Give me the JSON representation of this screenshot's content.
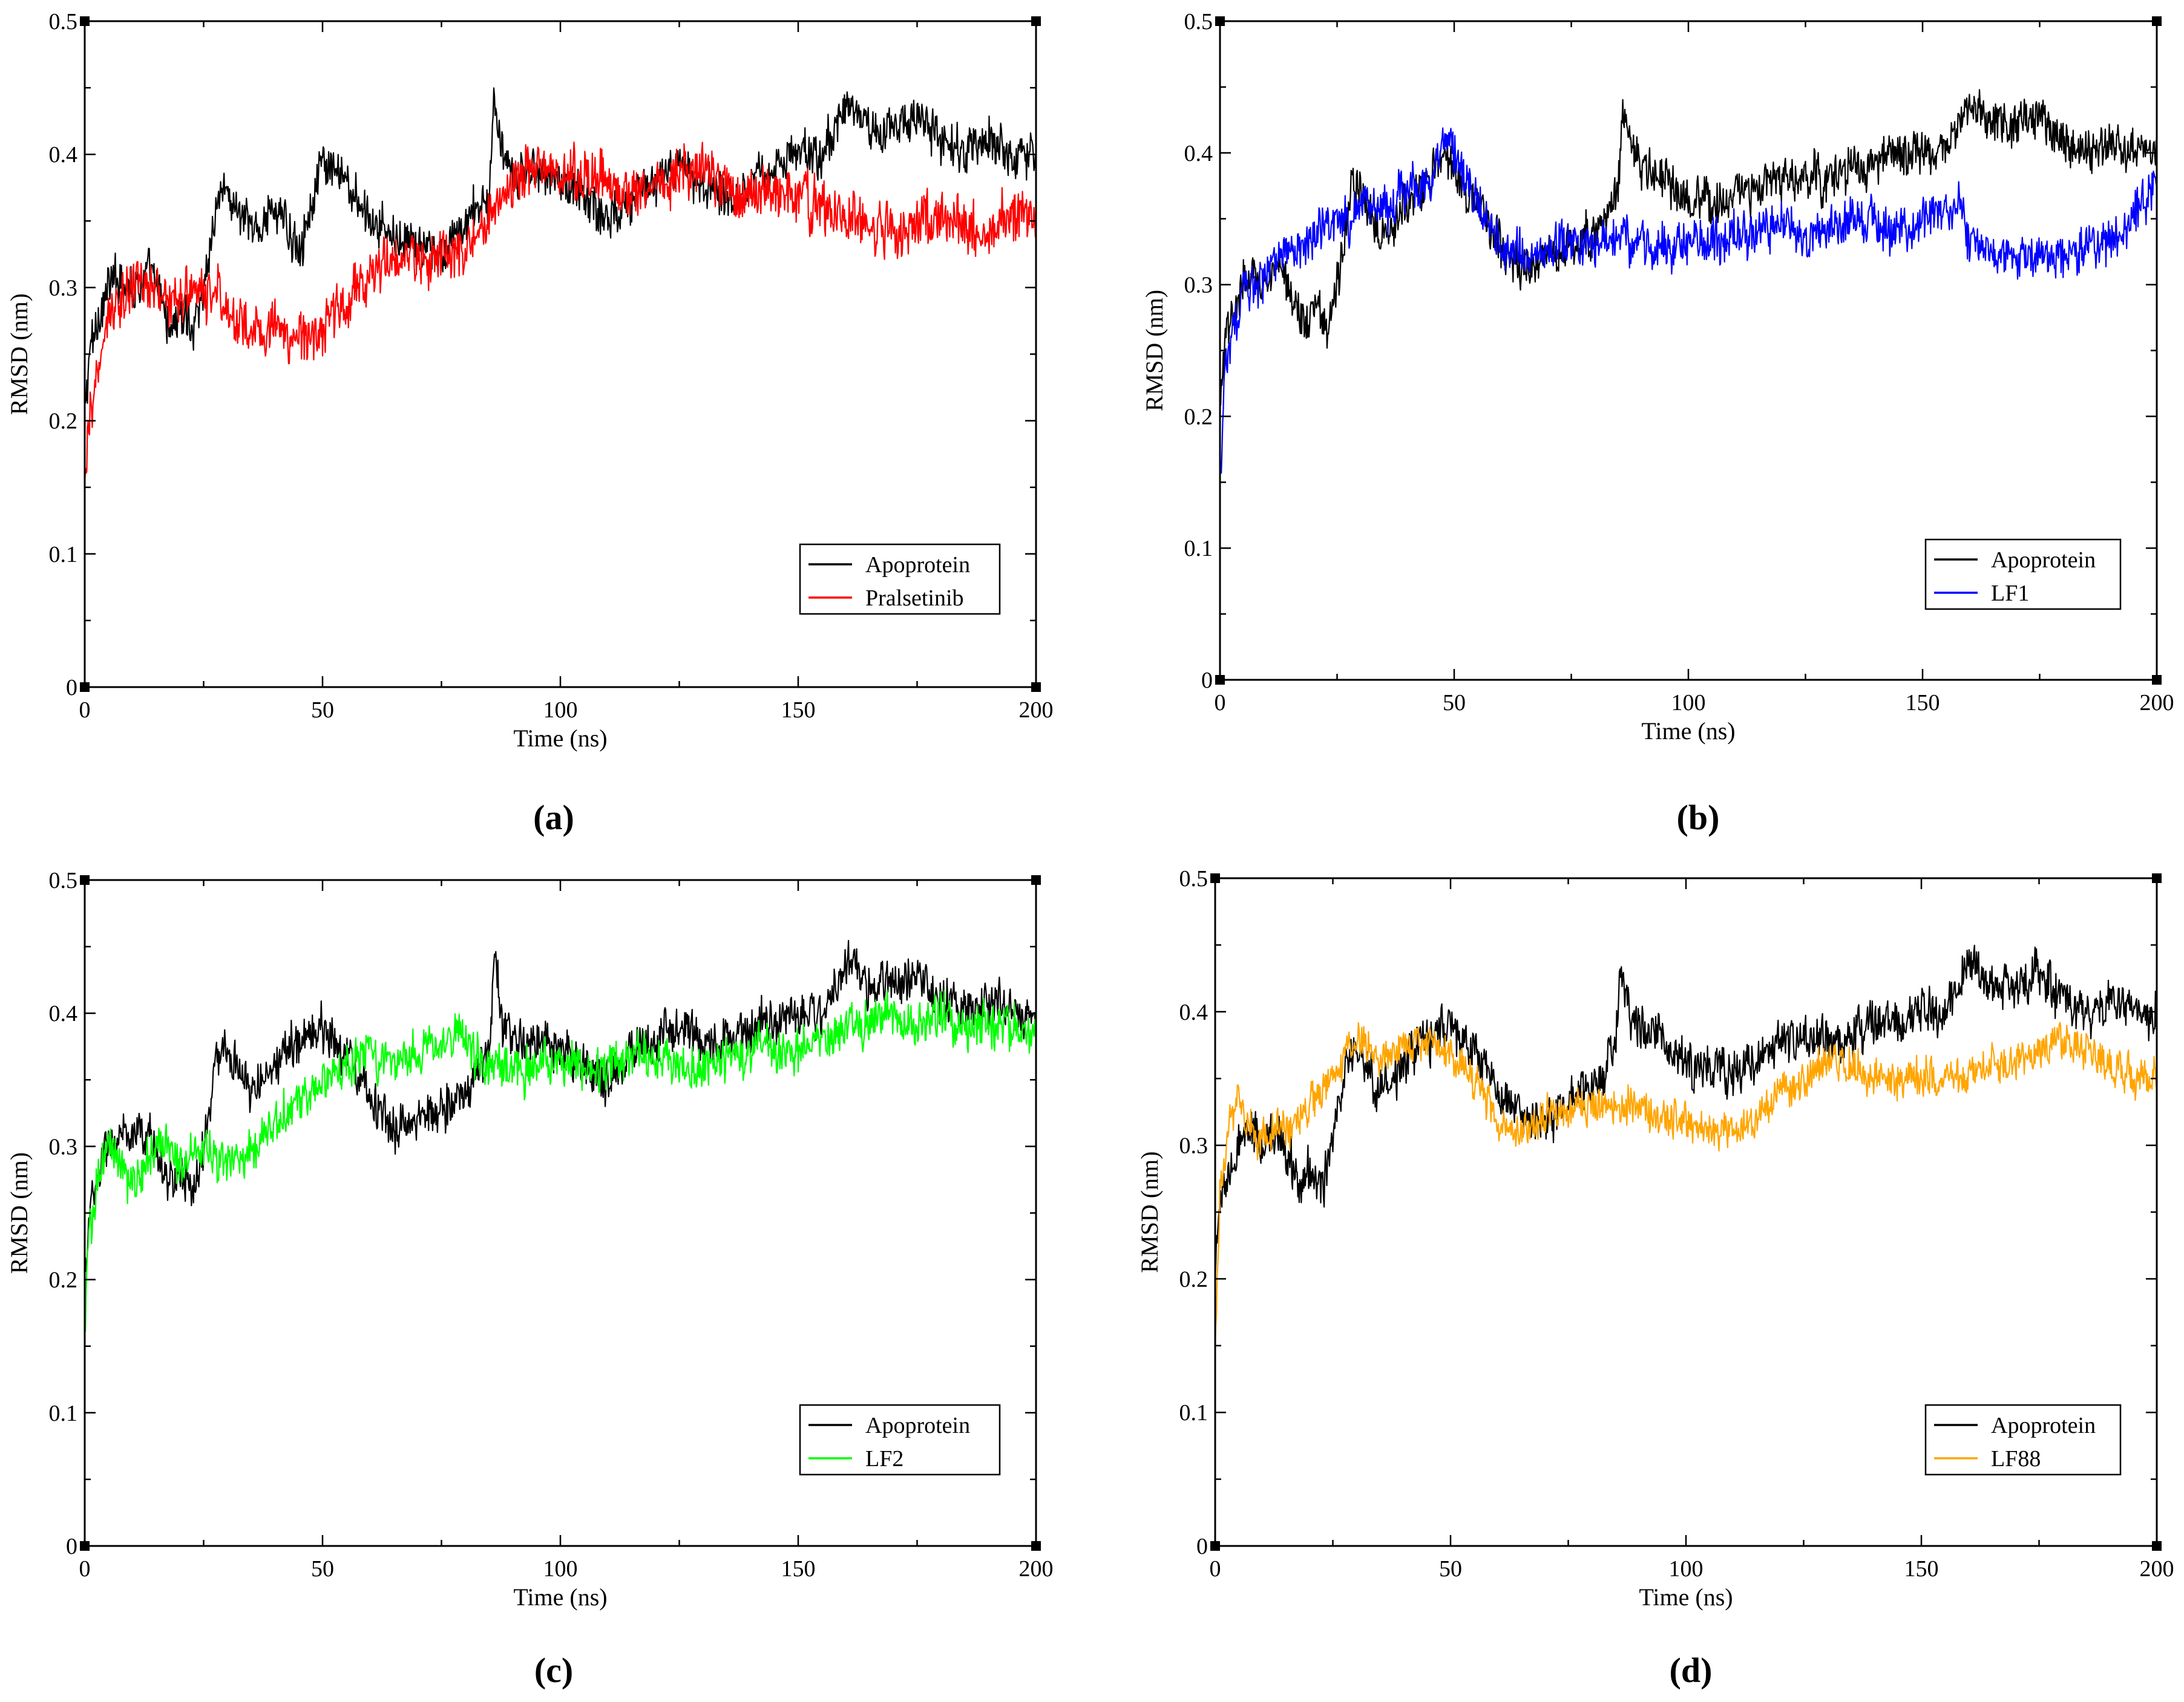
{
  "figure": {
    "panel_labels": [
      "(a)",
      "(b)",
      "(c)",
      "(d)"
    ]
  },
  "chart_data": [
    {
      "panel": "(a)",
      "type": "line",
      "xlabel": "Time (ns)",
      "ylabel": "RMSD (nm)",
      "xlim": [
        0,
        200
      ],
      "ylim": [
        0,
        0.5
      ],
      "x_ticks": [
        0,
        50,
        100,
        150,
        200
      ],
      "x_tick_labels": [
        "0",
        "50",
        "100",
        "150",
        "200"
      ],
      "y_ticks": [
        0,
        0.1,
        0.2,
        0.3,
        0.4,
        0.5
      ],
      "y_tick_labels": [
        "0",
        "0.1",
        "0.2",
        "0.3",
        "0.4",
        "0.5"
      ],
      "legend_position": "bottom-right",
      "x": [
        0,
        1,
        3,
        5,
        8,
        10,
        13,
        15,
        18,
        20,
        23,
        25,
        28,
        30,
        35,
        40,
        45,
        50,
        55,
        60,
        65,
        70,
        75,
        80,
        85,
        86,
        88,
        90,
        95,
        100,
        105,
        110,
        115,
        120,
        125,
        130,
        135,
        140,
        145,
        150,
        155,
        158,
        160,
        165,
        170,
        175,
        180,
        185,
        190,
        195,
        200
      ],
      "series": [
        {
          "name": "Apoprotein",
          "color": "#000000",
          "values": [
            0.2,
            0.25,
            0.28,
            0.3,
            0.31,
            0.3,
            0.31,
            0.3,
            0.27,
            0.28,
            0.27,
            0.3,
            0.37,
            0.37,
            0.34,
            0.36,
            0.33,
            0.39,
            0.38,
            0.35,
            0.34,
            0.33,
            0.32,
            0.35,
            0.37,
            0.44,
            0.39,
            0.38,
            0.39,
            0.38,
            0.37,
            0.35,
            0.37,
            0.38,
            0.39,
            0.38,
            0.37,
            0.38,
            0.39,
            0.4,
            0.4,
            0.42,
            0.44,
            0.42,
            0.42,
            0.43,
            0.41,
            0.4,
            0.41,
            0.4,
            0.4
          ],
          "noise": 0.022
        },
        {
          "name": "Pralsetinib",
          "color": "#ff0000",
          "values": [
            0.14,
            0.2,
            0.24,
            0.28,
            0.29,
            0.3,
            0.3,
            0.3,
            0.29,
            0.29,
            0.3,
            0.29,
            0.3,
            0.28,
            0.27,
            0.27,
            0.26,
            0.27,
            0.29,
            0.31,
            0.32,
            0.32,
            0.32,
            0.33,
            0.35,
            0.36,
            0.37,
            0.38,
            0.39,
            0.39,
            0.38,
            0.38,
            0.37,
            0.38,
            0.39,
            0.39,
            0.38,
            0.37,
            0.37,
            0.37,
            0.36,
            0.35,
            0.35,
            0.35,
            0.34,
            0.35,
            0.35,
            0.35,
            0.34,
            0.35,
            0.36
          ],
          "noise": 0.026
        }
      ]
    },
    {
      "panel": "(b)",
      "type": "line",
      "xlabel": "Time (ns)",
      "ylabel": "RMSD (nm)",
      "xlim": [
        0,
        200
      ],
      "ylim": [
        0,
        0.5
      ],
      "x_ticks": [
        0,
        50,
        100,
        150,
        200
      ],
      "x_tick_labels": [
        "0",
        "50",
        "100",
        "150",
        "200"
      ],
      "y_ticks": [
        0,
        0.1,
        0.2,
        0.3,
        0.4,
        0.5
      ],
      "y_tick_labels": [
        "0",
        "0.1",
        "0.2",
        "0.3",
        "0.4",
        "0.5"
      ],
      "legend_position": "bottom-right",
      "x": [
        0,
        1,
        3,
        5,
        8,
        10,
        13,
        15,
        18,
        20,
        23,
        25,
        28,
        30,
        35,
        40,
        45,
        48,
        50,
        55,
        60,
        65,
        70,
        75,
        80,
        85,
        86,
        88,
        90,
        95,
        100,
        105,
        110,
        115,
        120,
        125,
        130,
        135,
        140,
        145,
        150,
        155,
        158,
        160,
        165,
        170,
        175,
        180,
        185,
        190,
        195,
        200
      ],
      "series": [
        {
          "name": "Apoprotein",
          "color": "#000000",
          "values": [
            0.2,
            0.25,
            0.28,
            0.3,
            0.31,
            0.3,
            0.31,
            0.3,
            0.27,
            0.28,
            0.27,
            0.3,
            0.37,
            0.37,
            0.34,
            0.36,
            0.38,
            0.4,
            0.39,
            0.36,
            0.33,
            0.31,
            0.32,
            0.33,
            0.34,
            0.37,
            0.44,
            0.4,
            0.39,
            0.38,
            0.36,
            0.36,
            0.37,
            0.37,
            0.38,
            0.38,
            0.38,
            0.39,
            0.39,
            0.4,
            0.4,
            0.4,
            0.42,
            0.44,
            0.42,
            0.42,
            0.43,
            0.41,
            0.4,
            0.41,
            0.4,
            0.4
          ],
          "noise": 0.022
        },
        {
          "name": "LF1",
          "color": "#0000ff",
          "values": [
            0.15,
            0.24,
            0.27,
            0.29,
            0.3,
            0.31,
            0.32,
            0.33,
            0.33,
            0.34,
            0.34,
            0.35,
            0.35,
            0.36,
            0.36,
            0.37,
            0.38,
            0.41,
            0.4,
            0.36,
            0.33,
            0.32,
            0.33,
            0.33,
            0.33,
            0.34,
            0.34,
            0.33,
            0.33,
            0.33,
            0.33,
            0.33,
            0.34,
            0.34,
            0.35,
            0.34,
            0.34,
            0.35,
            0.35,
            0.34,
            0.35,
            0.36,
            0.36,
            0.33,
            0.32,
            0.32,
            0.32,
            0.32,
            0.33,
            0.33,
            0.35,
            0.38
          ],
          "noise": 0.022
        }
      ]
    },
    {
      "panel": "(c)",
      "type": "line",
      "xlabel": "Time (ns)",
      "ylabel": "RMSD (nm)",
      "xlim": [
        0,
        200
      ],
      "ylim": [
        0,
        0.5
      ],
      "x_ticks": [
        0,
        50,
        100,
        150,
        200
      ],
      "x_tick_labels": [
        "0",
        "50",
        "100",
        "150",
        "200"
      ],
      "y_ticks": [
        0,
        0.1,
        0.2,
        0.3,
        0.4,
        0.5
      ],
      "y_tick_labels": [
        "0",
        "0.1",
        "0.2",
        "0.3",
        "0.4",
        "0.5"
      ],
      "legend_position": "bottom-right",
      "x": [
        0,
        1,
        3,
        5,
        8,
        10,
        13,
        15,
        18,
        20,
        23,
        25,
        28,
        30,
        35,
        40,
        45,
        50,
        55,
        60,
        65,
        70,
        75,
        80,
        85,
        86,
        88,
        90,
        95,
        100,
        105,
        110,
        115,
        120,
        125,
        130,
        135,
        140,
        145,
        150,
        155,
        158,
        160,
        165,
        170,
        175,
        180,
        185,
        190,
        195,
        200
      ],
      "series": [
        {
          "name": "Apoprotein",
          "color": "#000000",
          "values": [
            0.2,
            0.25,
            0.28,
            0.3,
            0.31,
            0.3,
            0.31,
            0.3,
            0.27,
            0.28,
            0.27,
            0.3,
            0.37,
            0.37,
            0.34,
            0.36,
            0.38,
            0.39,
            0.37,
            0.34,
            0.31,
            0.32,
            0.33,
            0.34,
            0.37,
            0.44,
            0.39,
            0.38,
            0.38,
            0.37,
            0.36,
            0.35,
            0.37,
            0.38,
            0.39,
            0.38,
            0.38,
            0.39,
            0.39,
            0.4,
            0.4,
            0.42,
            0.44,
            0.42,
            0.42,
            0.43,
            0.41,
            0.4,
            0.41,
            0.4,
            0.4
          ],
          "noise": 0.022
        },
        {
          "name": "LF2",
          "color": "#00ff00",
          "values": [
            0.16,
            0.24,
            0.28,
            0.3,
            0.28,
            0.27,
            0.29,
            0.3,
            0.3,
            0.29,
            0.29,
            0.3,
            0.29,
            0.29,
            0.3,
            0.32,
            0.33,
            0.35,
            0.36,
            0.37,
            0.36,
            0.37,
            0.38,
            0.38,
            0.35,
            0.36,
            0.36,
            0.36,
            0.36,
            0.36,
            0.36,
            0.36,
            0.37,
            0.37,
            0.36,
            0.36,
            0.37,
            0.37,
            0.37,
            0.37,
            0.38,
            0.38,
            0.39,
            0.39,
            0.4,
            0.39,
            0.4,
            0.39,
            0.39,
            0.39,
            0.39
          ],
          "noise": 0.022
        }
      ]
    },
    {
      "panel": "(d)",
      "type": "line",
      "xlabel": "Time (ns)",
      "ylabel": "RMSD (nm)",
      "xlim": [
        0,
        200
      ],
      "ylim": [
        0,
        0.5
      ],
      "x_ticks": [
        0,
        50,
        100,
        150,
        200
      ],
      "x_tick_labels": [
        "0",
        "50",
        "100",
        "150",
        "200"
      ],
      "y_ticks": [
        0,
        0.1,
        0.2,
        0.3,
        0.4,
        0.5
      ],
      "y_tick_labels": [
        "0",
        "0.1",
        "0.2",
        "0.3",
        "0.4",
        "0.5"
      ],
      "legend_position": "bottom-right",
      "x": [
        0,
        1,
        3,
        5,
        8,
        10,
        13,
        15,
        18,
        20,
        23,
        25,
        28,
        30,
        35,
        40,
        45,
        50,
        55,
        60,
        65,
        70,
        75,
        80,
        85,
        86,
        88,
        90,
        95,
        100,
        105,
        110,
        115,
        120,
        125,
        130,
        135,
        140,
        145,
        150,
        155,
        158,
        160,
        165,
        170,
        175,
        180,
        185,
        190,
        195,
        200
      ],
      "series": [
        {
          "name": "Apoprotein",
          "color": "#000000",
          "values": [
            0.2,
            0.25,
            0.28,
            0.3,
            0.31,
            0.3,
            0.31,
            0.3,
            0.27,
            0.28,
            0.27,
            0.3,
            0.37,
            0.37,
            0.34,
            0.36,
            0.38,
            0.39,
            0.37,
            0.34,
            0.32,
            0.32,
            0.33,
            0.34,
            0.37,
            0.44,
            0.4,
            0.39,
            0.38,
            0.36,
            0.36,
            0.35,
            0.37,
            0.38,
            0.38,
            0.38,
            0.38,
            0.39,
            0.39,
            0.4,
            0.4,
            0.42,
            0.44,
            0.42,
            0.42,
            0.43,
            0.41,
            0.4,
            0.41,
            0.4,
            0.4
          ],
          "noise": 0.022
        },
        {
          "name": "LF88",
          "color": "#ffa500",
          "values": [
            0.15,
            0.27,
            0.32,
            0.33,
            0.31,
            0.3,
            0.31,
            0.31,
            0.32,
            0.33,
            0.34,
            0.35,
            0.37,
            0.38,
            0.37,
            0.37,
            0.38,
            0.37,
            0.35,
            0.32,
            0.31,
            0.32,
            0.33,
            0.33,
            0.33,
            0.33,
            0.33,
            0.33,
            0.32,
            0.32,
            0.31,
            0.31,
            0.32,
            0.34,
            0.35,
            0.36,
            0.36,
            0.35,
            0.35,
            0.35,
            0.35,
            0.35,
            0.35,
            0.36,
            0.36,
            0.37,
            0.38,
            0.37,
            0.36,
            0.35,
            0.35
          ],
          "noise": 0.018
        }
      ]
    }
  ]
}
